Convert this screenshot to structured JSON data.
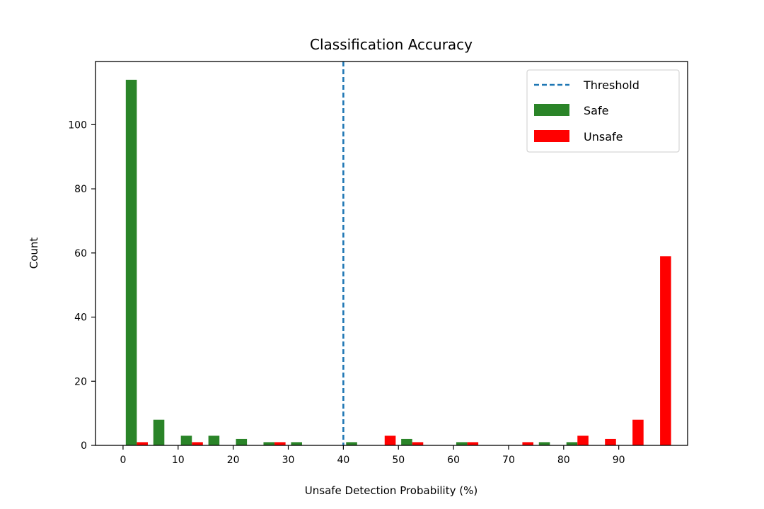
{
  "chart_data": {
    "type": "bar",
    "title": "Classification Accuracy",
    "xlabel": "Unsafe Detection Probability (%)",
    "ylabel": "Count",
    "xlim": [
      -5,
      102.5
    ],
    "ylim": [
      0,
      119.7
    ],
    "xticks": [
      0,
      10,
      20,
      30,
      40,
      50,
      60,
      70,
      80,
      90
    ],
    "yticks": [
      0,
      20,
      40,
      60,
      80,
      100
    ],
    "bin_width": 5,
    "bin_starts": [
      0,
      5,
      10,
      15,
      20,
      25,
      30,
      35,
      40,
      45,
      50,
      55,
      60,
      65,
      70,
      75,
      80,
      85,
      90,
      95
    ],
    "threshold": {
      "name": "Threshold",
      "value": 40,
      "color": "#1f77b4"
    },
    "series": [
      {
        "name": "Safe",
        "color": "#2a8428",
        "values": [
          114,
          8,
          3,
          3,
          2,
          1,
          1,
          0,
          1,
          0,
          2,
          0,
          1,
          0,
          0,
          1,
          1,
          0,
          0,
          0
        ]
      },
      {
        "name": "Unsafe",
        "color": "#ff0000",
        "values": [
          1,
          0,
          1,
          0,
          0,
          1,
          0,
          0,
          0,
          3,
          1,
          0,
          1,
          0,
          1,
          0,
          3,
          2,
          8,
          59
        ]
      }
    ],
    "legend_position": "top-right",
    "grid": false
  }
}
